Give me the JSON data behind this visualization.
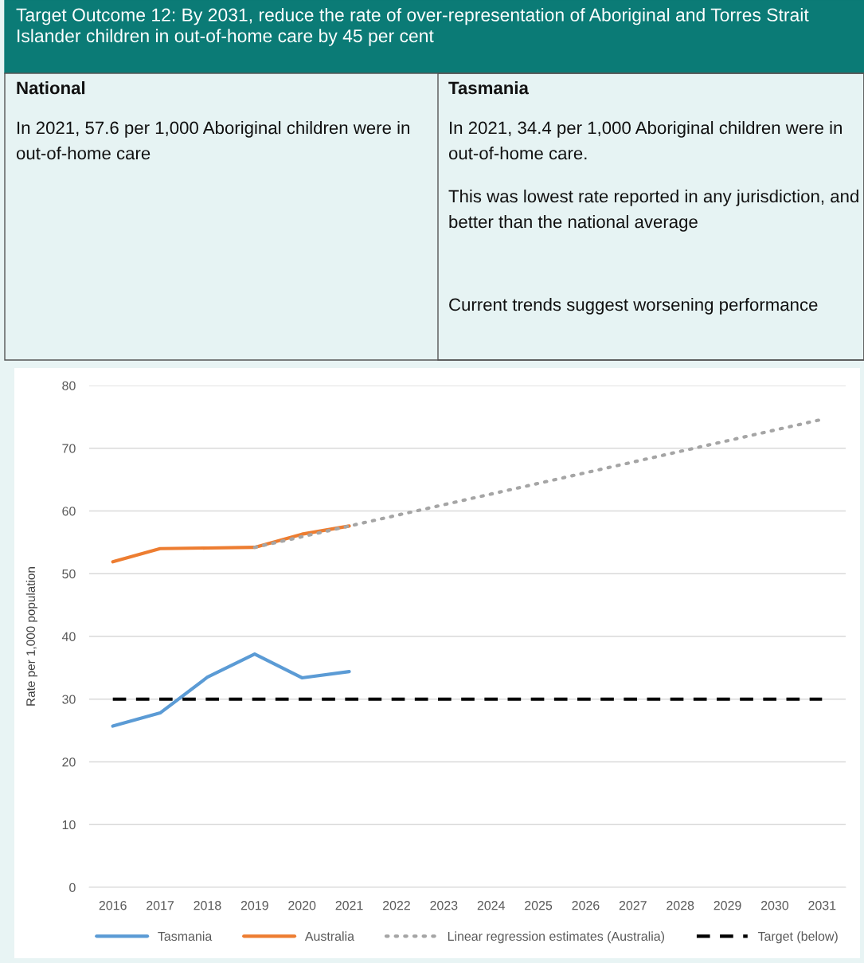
{
  "chart_data": {
    "type": "line",
    "title": "Target Outcome 12: By 2031, reduce the rate of over-representation of Aboriginal and Torres Strait Islander children in out-of-home care by 45 per cent",
    "annotations": [
      "National",
      "In 2021, 57.6 per 1,000 Aboriginal children were in out-of-home care",
      "Tasmania",
      "In 2021, 34.4 per 1,000 Aboriginal children were in out-of-home care.",
      "This was lowest rate reported in any jurisdiction, and better than the national average",
      "Current trends suggest worsening performance"
    ],
    "ylabel": "Rate per 1,000 population",
    "x": [
      2016,
      2017,
      2018,
      2019,
      2020,
      2021
    ],
    "series": [
      {
        "name": "Tasmania",
        "color": "#5b9bd5",
        "values": [
          25.7,
          27.8,
          33.5,
          37.2,
          33.4,
          34.4
        ]
      },
      {
        "name": "Australia",
        "color": "#ed7d31",
        "values": [
          51.9,
          54.0,
          54.1,
          54.2,
          56.3,
          57.6
        ]
      },
      {
        "name": "Linear regression estimates (Australia)",
        "color": "#a5a5a5",
        "x": [
          2019,
          2031
        ],
        "values": [
          54.2,
          74.6
        ],
        "line_style": "dotted"
      },
      {
        "name": "Target (below)",
        "color": "#000000",
        "x": [
          2016,
          2031
        ],
        "values": [
          30,
          30
        ],
        "line_style": "dashed"
      }
    ],
    "xlim": [
      2015.5,
      2031.5
    ],
    "xticks": [
      2016,
      2017,
      2018,
      2019,
      2020,
      2021,
      2022,
      2023,
      2024,
      2025,
      2026,
      2027,
      2028,
      2029,
      2030,
      2031
    ],
    "ylim": [
      0,
      80
    ],
    "yticks": [
      0,
      10,
      20,
      30,
      40,
      50,
      60,
      70,
      80
    ],
    "grid": "y",
    "legend": "bottom",
    "marker": "none",
    "line_style": "solid"
  }
}
